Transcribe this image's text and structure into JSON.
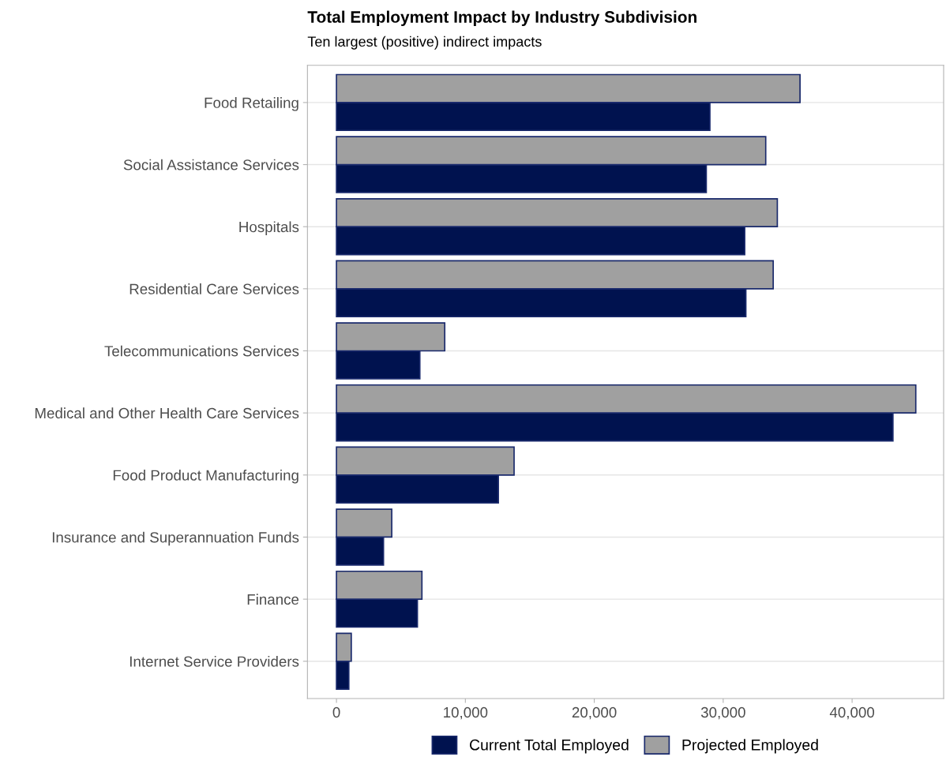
{
  "chart_data": {
    "type": "bar",
    "orientation": "horizontal",
    "title": "Total Employment Impact by Industry Subdivision",
    "subtitle": "Ten largest (positive) indirect impacts",
    "categories": [
      "Food Retailing",
      "Social Assistance Services",
      "Hospitals",
      "Residential Care Services",
      "Telecommunications Services",
      "Medical and Other Health Care Services",
      "Food Product Manufacturing",
      "Insurance and Superannuation Funds",
      "Finance",
      "Internet Service Providers"
    ],
    "series": [
      {
        "name": "Current Total Employed",
        "color": "#00124f",
        "values": [
          28970,
          28690,
          31670,
          31760,
          6470,
          43170,
          12560,
          3650,
          6280,
          960
        ]
      },
      {
        "name": "Projected Employed",
        "color": "#a0a0a0",
        "values": [
          35960,
          33300,
          34200,
          33880,
          8400,
          44940,
          13780,
          4290,
          6630,
          1150
        ]
      }
    ],
    "xlim": [
      -2250,
      47100
    ],
    "xticks": [
      {
        "value": 0,
        "label": "0"
      },
      {
        "value": 10000,
        "label": "10,000"
      },
      {
        "value": 20000,
        "label": "20,000"
      },
      {
        "value": 30000,
        "label": "30,000"
      },
      {
        "value": 40000,
        "label": "40,000"
      }
    ],
    "grid": "y",
    "legend": "bottom"
  }
}
